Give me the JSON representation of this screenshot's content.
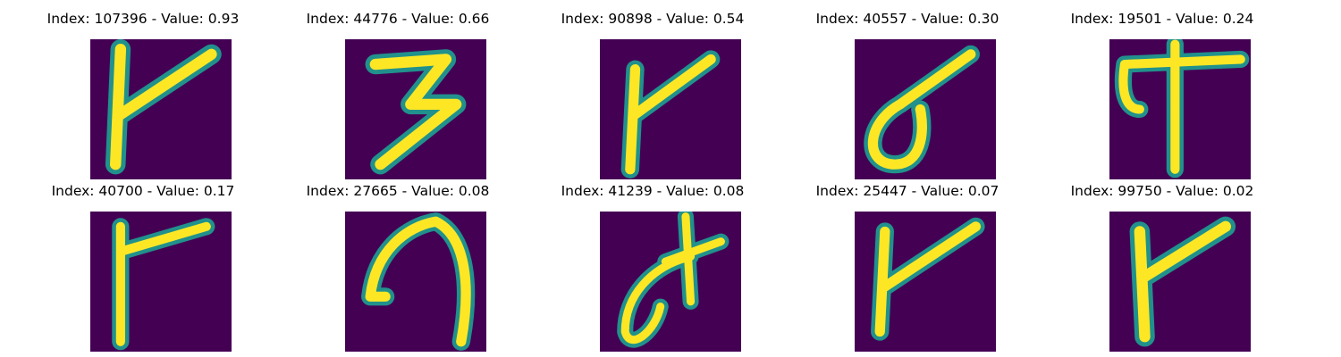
{
  "colors": {
    "background": "#440154",
    "mid": "#21918c",
    "stroke": "#fde725"
  },
  "panels": [
    {
      "title": "Index: 107396 - Value: 0.93",
      "glyph": "hooked-stroke"
    },
    {
      "title": "Index: 44776 - Value: 0.66",
      "glyph": "three-shape"
    },
    {
      "title": "Index: 90898 - Value: 0.54",
      "glyph": "hooked-stroke"
    },
    {
      "title": "Index: 40557 - Value: 0.30",
      "glyph": "loop-with-tail"
    },
    {
      "title": "Index: 19501 - Value: 0.24",
      "glyph": "cross-shape"
    },
    {
      "title": "Index: 40700 - Value: 0.17",
      "glyph": "flag-stroke"
    },
    {
      "title": "Index: 27665 - Value: 0.08",
      "glyph": "curved-arc"
    },
    {
      "title": "Index: 41239 - Value: 0.08",
      "glyph": "curl-with-cross"
    },
    {
      "title": "Index: 25447 - Value: 0.07",
      "glyph": "hooked-stroke"
    },
    {
      "title": "Index: 99750 - Value: 0.02",
      "glyph": "hooked-stroke"
    }
  ]
}
